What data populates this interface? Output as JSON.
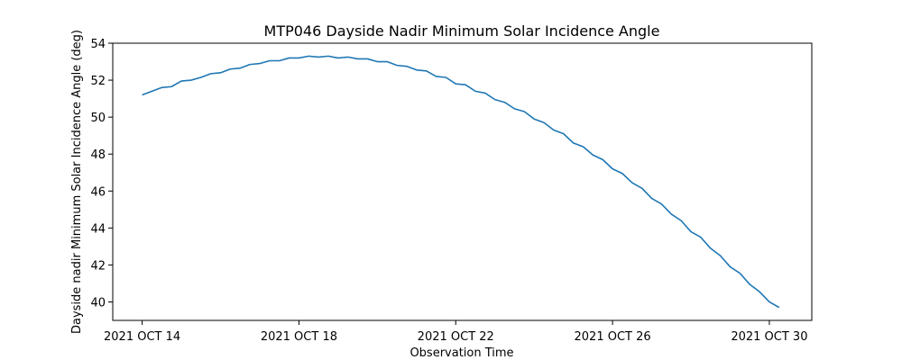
{
  "chart_data": {
    "type": "line",
    "title": "MTP046 Dayside Nadir Minimum Solar Incidence Angle",
    "xlabel": "Observation Time",
    "ylabel": "Dayside nadir Minimum Solar Incidence Angle (deg)",
    "x_tick_labels": [
      "2021 OCT 14",
      "2021 OCT 18",
      "2021 OCT 22",
      "2021 OCT 26",
      "2021 OCT 30"
    ],
    "x_tick_values": [
      "2021-10-14",
      "2021-10-18",
      "2021-10-22",
      "2021-10-26",
      "2021-10-30"
    ],
    "y_tick_labels": [
      "40",
      "42",
      "44",
      "46",
      "48",
      "50",
      "52",
      "54"
    ],
    "y_tick_values": [
      40,
      42,
      44,
      46,
      48,
      50,
      52,
      54
    ],
    "xlim": [
      "2021-10-13T06:00",
      "2021-10-31T02:00"
    ],
    "ylim": [
      39.0,
      54.0
    ],
    "grid": false,
    "line_color": "#1f77b4",
    "series": [
      {
        "values": [
          [
            "2021-10-14T00:00",
            51.2
          ],
          [
            "2021-10-14T06:00",
            51.4
          ],
          [
            "2021-10-14T12:00",
            51.6
          ],
          [
            "2021-10-14T18:00",
            51.65
          ],
          [
            "2021-10-15T00:00",
            51.95
          ],
          [
            "2021-10-15T06:00",
            52.0
          ],
          [
            "2021-10-15T12:00",
            52.15
          ],
          [
            "2021-10-15T18:00",
            52.35
          ],
          [
            "2021-10-16T00:00",
            52.4
          ],
          [
            "2021-10-16T06:00",
            52.6
          ],
          [
            "2021-10-16T12:00",
            52.65
          ],
          [
            "2021-10-16T18:00",
            52.85
          ],
          [
            "2021-10-17T00:00",
            52.9
          ],
          [
            "2021-10-17T06:00",
            53.05
          ],
          [
            "2021-10-17T12:00",
            53.05
          ],
          [
            "2021-10-17T18:00",
            53.2
          ],
          [
            "2021-10-18T00:00",
            53.2
          ],
          [
            "2021-10-18T06:00",
            53.3
          ],
          [
            "2021-10-18T12:00",
            53.25
          ],
          [
            "2021-10-18T18:00",
            53.3
          ],
          [
            "2021-10-19T00:00",
            53.2
          ],
          [
            "2021-10-19T06:00",
            53.25
          ],
          [
            "2021-10-19T12:00",
            53.15
          ],
          [
            "2021-10-19T18:00",
            53.15
          ],
          [
            "2021-10-20T00:00",
            53.0
          ],
          [
            "2021-10-20T06:00",
            53.0
          ],
          [
            "2021-10-20T12:00",
            52.8
          ],
          [
            "2021-10-20T18:00",
            52.75
          ],
          [
            "2021-10-21T00:00",
            52.55
          ],
          [
            "2021-10-21T06:00",
            52.5
          ],
          [
            "2021-10-21T12:00",
            52.2
          ],
          [
            "2021-10-21T18:00",
            52.15
          ],
          [
            "2021-10-22T00:00",
            51.8
          ],
          [
            "2021-10-22T06:00",
            51.75
          ],
          [
            "2021-10-22T12:00",
            51.4
          ],
          [
            "2021-10-22T18:00",
            51.3
          ],
          [
            "2021-10-23T00:00",
            50.95
          ],
          [
            "2021-10-23T06:00",
            50.8
          ],
          [
            "2021-10-23T12:00",
            50.45
          ],
          [
            "2021-10-23T18:00",
            50.3
          ],
          [
            "2021-10-24T00:00",
            49.9
          ],
          [
            "2021-10-24T06:00",
            49.7
          ],
          [
            "2021-10-24T12:00",
            49.3
          ],
          [
            "2021-10-24T18:00",
            49.1
          ],
          [
            "2021-10-25T00:00",
            48.6
          ],
          [
            "2021-10-25T06:00",
            48.4
          ],
          [
            "2021-10-25T12:00",
            47.95
          ],
          [
            "2021-10-25T18:00",
            47.7
          ],
          [
            "2021-10-26T00:00",
            47.2
          ],
          [
            "2021-10-26T06:00",
            46.95
          ],
          [
            "2021-10-26T12:00",
            46.45
          ],
          [
            "2021-10-26T18:00",
            46.15
          ],
          [
            "2021-10-27T00:00",
            45.6
          ],
          [
            "2021-10-27T06:00",
            45.3
          ],
          [
            "2021-10-27T12:00",
            44.75
          ],
          [
            "2021-10-27T18:00",
            44.4
          ],
          [
            "2021-10-28T00:00",
            43.8
          ],
          [
            "2021-10-28T06:00",
            43.5
          ],
          [
            "2021-10-28T12:00",
            42.9
          ],
          [
            "2021-10-28T18:00",
            42.5
          ],
          [
            "2021-10-29T00:00",
            41.9
          ],
          [
            "2021-10-29T06:00",
            41.55
          ],
          [
            "2021-10-29T12:00",
            40.95
          ],
          [
            "2021-10-29T18:00",
            40.55
          ],
          [
            "2021-10-30T00:00",
            40.0
          ],
          [
            "2021-10-30T06:00",
            39.7
          ]
        ]
      }
    ]
  }
}
